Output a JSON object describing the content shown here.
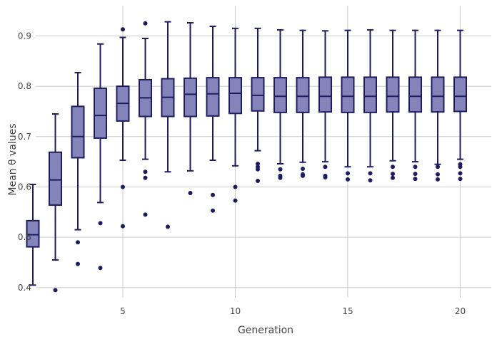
{
  "chart_data": {
    "type": "box",
    "xlabel": "Generation",
    "ylabel": "Mean θ values",
    "xlim": [
      0.5,
      20.5
    ],
    "ylim": [
      0.38,
      0.96
    ],
    "x_ticks": [
      5,
      10,
      15,
      20
    ],
    "y_ticks": [
      0.4,
      0.5,
      0.6,
      0.7,
      0.8,
      0.9
    ],
    "x_tick_labels": [
      "5",
      "10",
      "15",
      "20"
    ],
    "y_tick_labels": [
      "0.4",
      "0.5",
      "0.6",
      "0.7",
      "0.8",
      "0.9"
    ],
    "grid": true,
    "legend": "none",
    "colors": {
      "box_fill": "#8484bb",
      "box_line": "#1c1c5e",
      "grid": "#cccccc"
    },
    "boxes": [
      {
        "x": 1,
        "min": 0.405,
        "q1": 0.481,
        "median": 0.505,
        "q3": 0.533,
        "max": 0.605,
        "outliers": []
      },
      {
        "x": 2,
        "min": 0.455,
        "q1": 0.564,
        "median": 0.614,
        "q3": 0.669,
        "max": 0.745,
        "outliers": [
          0.395
        ]
      },
      {
        "x": 3,
        "min": 0.515,
        "q1": 0.658,
        "median": 0.7,
        "q3": 0.76,
        "max": 0.827,
        "outliers": [
          0.49,
          0.447
        ]
      },
      {
        "x": 4,
        "min": 0.569,
        "q1": 0.697,
        "median": 0.742,
        "q3": 0.796,
        "max": 0.884,
        "outliers": [
          0.528,
          0.439
        ]
      },
      {
        "x": 5,
        "min": 0.653,
        "q1": 0.731,
        "median": 0.766,
        "q3": 0.8,
        "max": 0.897,
        "outliers": [
          0.913,
          0.6,
          0.522
        ]
      },
      {
        "x": 6,
        "min": 0.655,
        "q1": 0.74,
        "median": 0.777,
        "q3": 0.813,
        "max": 0.895,
        "outliers": [
          0.925,
          0.63,
          0.618,
          0.545
        ]
      },
      {
        "x": 7,
        "min": 0.63,
        "q1": 0.74,
        "median": 0.778,
        "q3": 0.815,
        "max": 0.928,
        "outliers": [
          0.521
        ]
      },
      {
        "x": 8,
        "min": 0.632,
        "q1": 0.74,
        "median": 0.784,
        "q3": 0.816,
        "max": 0.926,
        "outliers": [
          0.588
        ]
      },
      {
        "x": 9,
        "min": 0.653,
        "q1": 0.741,
        "median": 0.785,
        "q3": 0.817,
        "max": 0.919,
        "outliers": [
          0.584,
          0.553
        ]
      },
      {
        "x": 10,
        "min": 0.642,
        "q1": 0.746,
        "median": 0.786,
        "q3": 0.817,
        "max": 0.915,
        "outliers": [
          0.6,
          0.573
        ]
      },
      {
        "x": 11,
        "min": 0.672,
        "q1": 0.751,
        "median": 0.782,
        "q3": 0.817,
        "max": 0.915,
        "outliers": [
          0.646,
          0.64,
          0.635,
          0.612
        ]
      },
      {
        "x": 12,
        "min": 0.646,
        "q1": 0.748,
        "median": 0.78,
        "q3": 0.817,
        "max": 0.912,
        "outliers": [
          0.635,
          0.622,
          0.618
        ]
      },
      {
        "x": 13,
        "min": 0.649,
        "q1": 0.748,
        "median": 0.78,
        "q3": 0.817,
        "max": 0.911,
        "outliers": [
          0.636,
          0.625,
          0.622
        ]
      },
      {
        "x": 14,
        "min": 0.65,
        "q1": 0.749,
        "median": 0.78,
        "q3": 0.818,
        "max": 0.91,
        "outliers": [
          0.64,
          0.622,
          0.619
        ]
      },
      {
        "x": 15,
        "min": 0.64,
        "q1": 0.748,
        "median": 0.78,
        "q3": 0.818,
        "max": 0.911,
        "outliers": [
          0.627,
          0.615
        ]
      },
      {
        "x": 16,
        "min": 0.64,
        "q1": 0.748,
        "median": 0.78,
        "q3": 0.818,
        "max": 0.912,
        "outliers": [
          0.627,
          0.613
        ]
      },
      {
        "x": 17,
        "min": 0.652,
        "q1": 0.749,
        "median": 0.78,
        "q3": 0.818,
        "max": 0.911,
        "outliers": [
          0.64,
          0.626,
          0.618
        ]
      },
      {
        "x": 18,
        "min": 0.65,
        "q1": 0.749,
        "median": 0.78,
        "q3": 0.818,
        "max": 0.911,
        "outliers": [
          0.64,
          0.626,
          0.616
        ]
      },
      {
        "x": 19,
        "min": 0.645,
        "q1": 0.749,
        "median": 0.78,
        "q3": 0.818,
        "max": 0.911,
        "outliers": [
          0.64,
          0.625,
          0.615
        ]
      },
      {
        "x": 20,
        "min": 0.655,
        "q1": 0.75,
        "median": 0.78,
        "q3": 0.818,
        "max": 0.911,
        "outliers": [
          0.645,
          0.64,
          0.627,
          0.616
        ]
      }
    ]
  }
}
